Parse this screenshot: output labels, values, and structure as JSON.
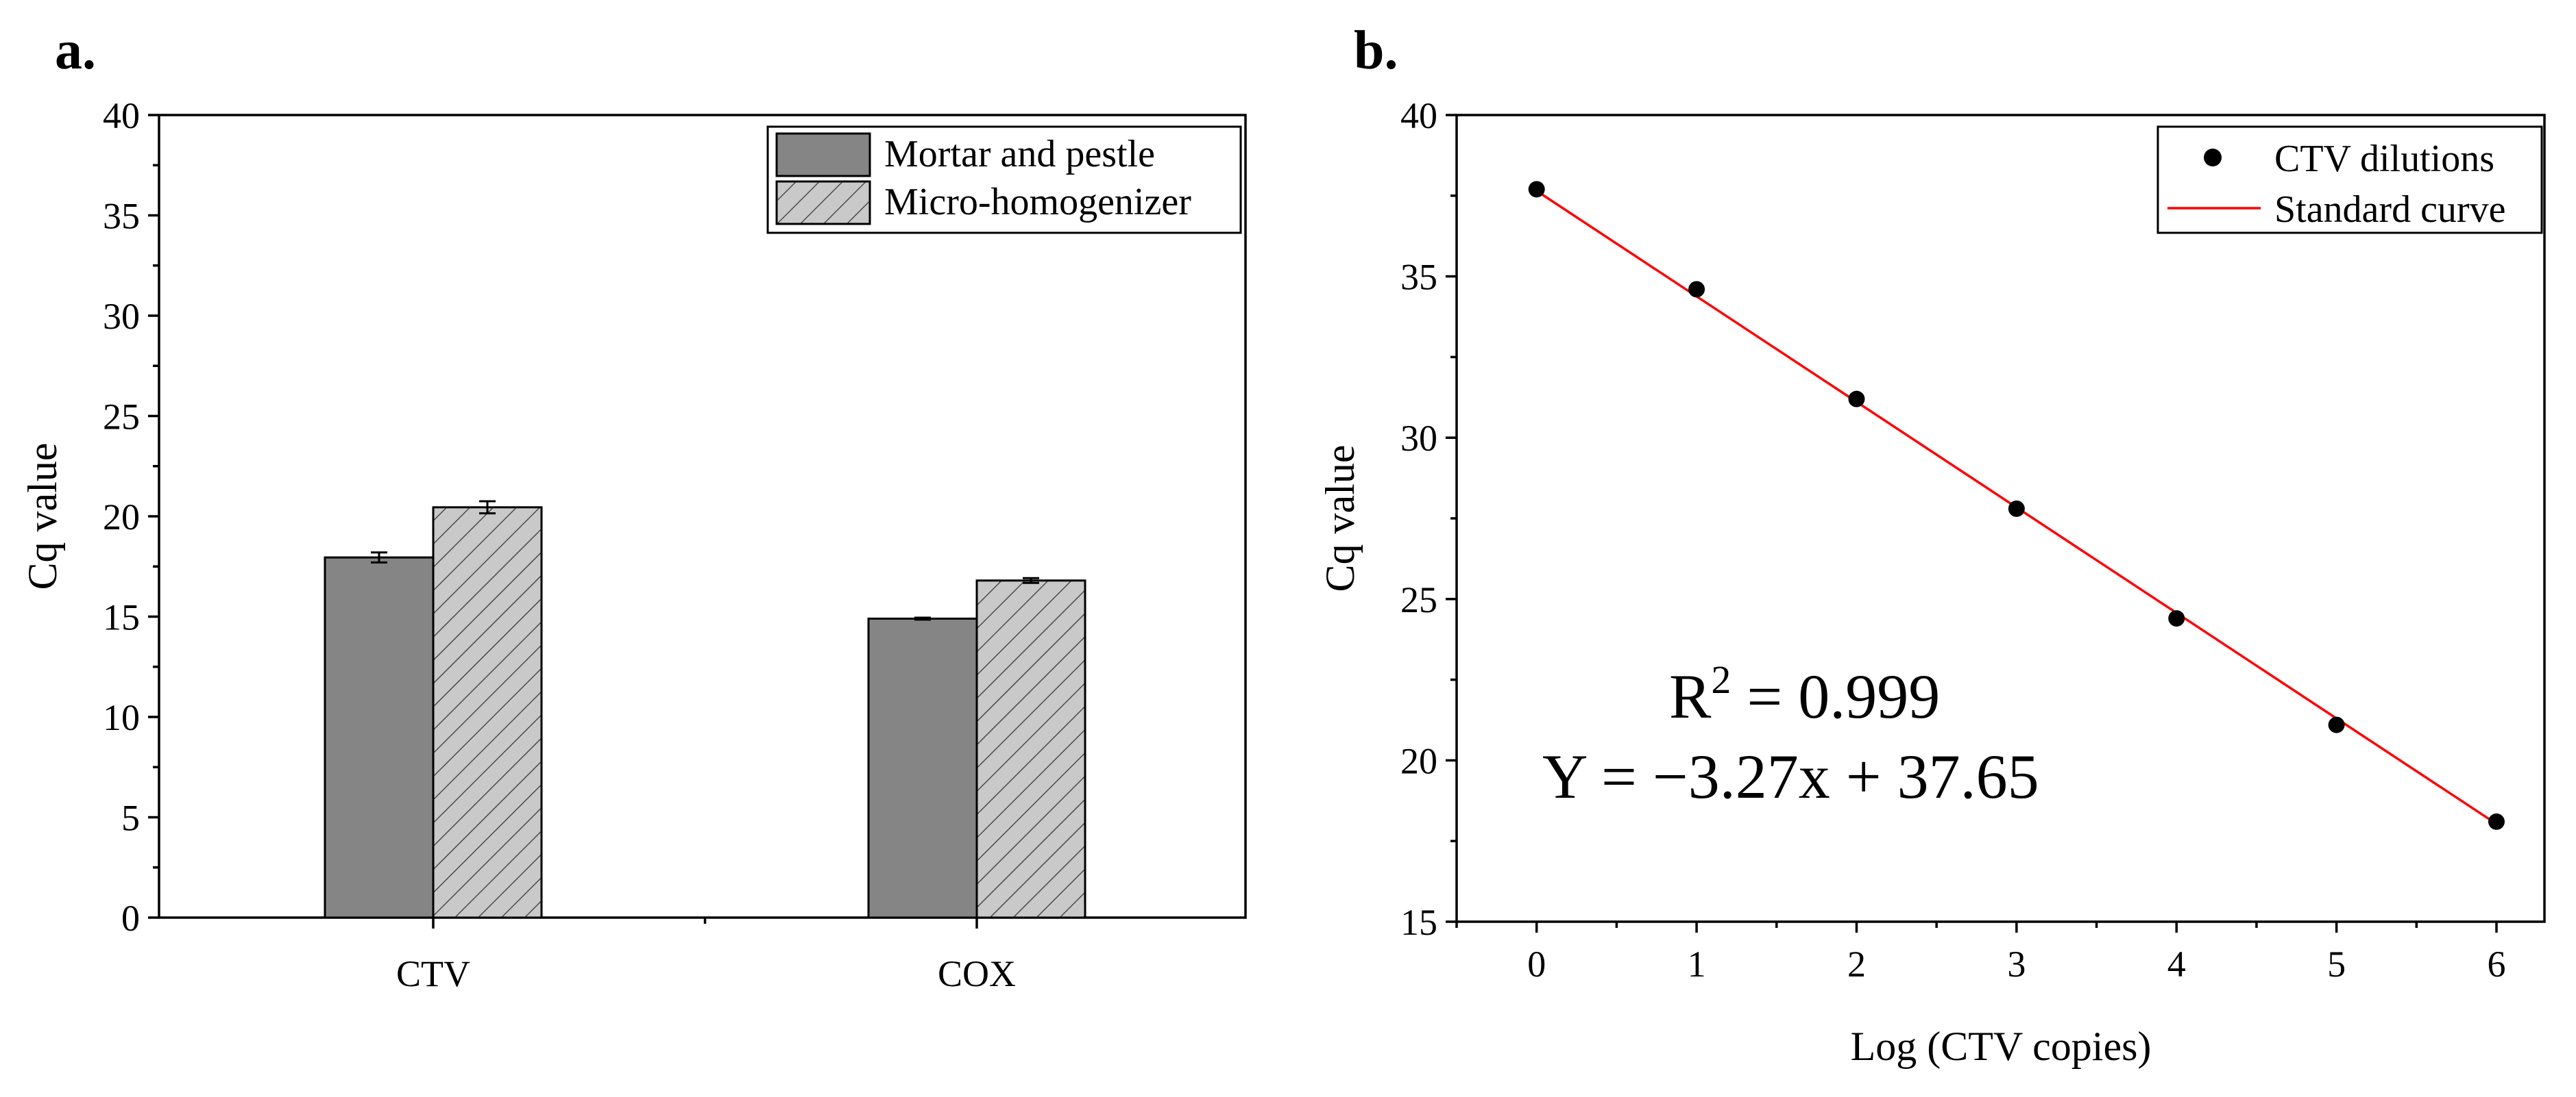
{
  "panel_labels": [
    "a.",
    "b."
  ],
  "colors": {
    "mortar": "#858585",
    "micro": "#c9c9c9",
    "hatch": "#4a4a4a",
    "axis": "#000000",
    "dots": "#000000",
    "fit_line": "#ff0000"
  },
  "chart_data": [
    {
      "id": "a",
      "type": "bar",
      "title": "",
      "xlabel": "",
      "ylabel": "Cq value",
      "ylim": [
        0,
        40
      ],
      "yticks": [
        0,
        5,
        10,
        15,
        20,
        25,
        30,
        35,
        40
      ],
      "categories": [
        "CTV",
        "COX"
      ],
      "series": [
        {
          "name": "Mortar and pestle",
          "values": [
            17.95,
            14.9
          ],
          "errors": [
            0.25,
            0.05
          ],
          "pattern": "solid"
        },
        {
          "name": "Micro-homogenizer",
          "values": [
            20.45,
            16.8
          ],
          "errors": [
            0.3,
            0.12
          ],
          "pattern": "hatched"
        }
      ],
      "legend_position": "top-right"
    },
    {
      "id": "b",
      "type": "scatter",
      "title": "",
      "xlabel": "Log (CTV copies)",
      "ylabel": "Cq value",
      "xlim": [
        -0.5,
        6.3
      ],
      "ylim": [
        15,
        40
      ],
      "xticks": [
        0,
        1,
        2,
        3,
        4,
        5,
        6
      ],
      "yticks": [
        15,
        20,
        25,
        30,
        35,
        40
      ],
      "series": [
        {
          "name": "CTV dilutions",
          "kind": "points",
          "x": [
            0,
            1,
            2,
            3,
            4,
            5,
            6
          ],
          "y": [
            37.7,
            34.6,
            31.2,
            27.8,
            24.4,
            21.1,
            18.1
          ]
        },
        {
          "name": "Standard curve",
          "kind": "line",
          "slope": -3.27,
          "intercept": 37.65,
          "x_range": [
            0,
            6
          ]
        }
      ],
      "annotations": {
        "r2_prefix": "R",
        "r2_exp": "2",
        "r2_value": " = 0.999",
        "equation": "Y = −3.27x + 37.65"
      },
      "legend_position": "top-right"
    }
  ]
}
